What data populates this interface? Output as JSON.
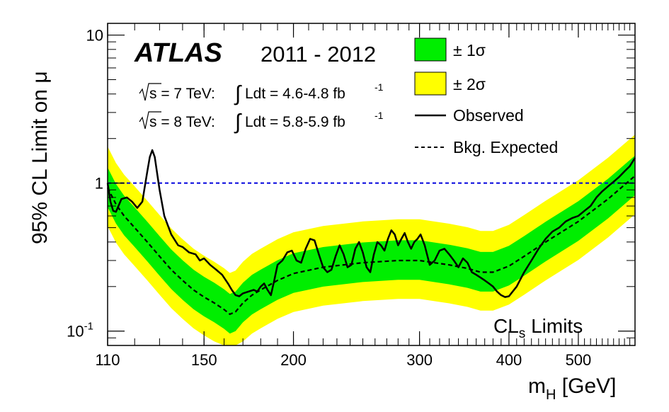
{
  "chart_data": {
    "type": "line",
    "experiment": "ATLAS",
    "years": "2011 - 2012",
    "lumi_lines": [
      {
        "sqrt": "s",
        "energy": " = 7 TeV: ",
        "int": "∫",
        "ldt": "Ldt = 4.6-4.8 fb",
        "sup": "-1"
      },
      {
        "sqrt": "s",
        "energy": " = 8 TeV: ",
        "int": "∫",
        "ldt": "Ldt = 5.8-5.9 fb",
        "sup": "-1"
      }
    ],
    "method": {
      "main": "CL",
      "sub": "s",
      "rest": " Limits"
    },
    "xlabel": {
      "main": "m",
      "sub": "H",
      "rest": " [GeV]"
    },
    "ylabel": "95% CL Limit on μ",
    "x_scale": "log",
    "y_scale": "log",
    "xlim": [
      110,
      600
    ],
    "ylim": [
      0.08,
      12
    ],
    "x_ticks": [
      {
        "value": 110,
        "label": "110"
      },
      {
        "value": 150,
        "label": "150"
      },
      {
        "value": 200,
        "label": "200"
      },
      {
        "value": 300,
        "label": "300"
      },
      {
        "value": 400,
        "label": "400"
      },
      {
        "value": 500,
        "label": "500"
      }
    ],
    "y_ticks": [
      {
        "value": 0.1,
        "label_base": "10",
        "label_exp": "-1"
      },
      {
        "value": 1,
        "label_base": "1",
        "label_exp": ""
      },
      {
        "value": 10,
        "label_base": "10",
        "label_exp": ""
      }
    ],
    "reference_line": {
      "y": 1,
      "color": "#0000dd"
    },
    "legend": [
      {
        "key": "band1",
        "label": "± 1σ",
        "color": "#00ee00"
      },
      {
        "key": "band2",
        "label": "± 2σ",
        "color": "#ffff00"
      },
      {
        "key": "observed",
        "label": "Observed"
      },
      {
        "key": "expected",
        "label": "Bkg. Expected"
      }
    ],
    "expected": {
      "x": [
        110,
        113,
        116,
        120,
        125,
        130,
        135,
        140,
        145,
        150,
        155,
        160,
        163,
        166,
        170,
        175,
        180,
        190,
        200,
        220,
        250,
        280,
        300,
        330,
        350,
        365,
        380,
        400,
        420,
        450,
        500,
        550,
        600
      ],
      "y": [
        0.93,
        0.72,
        0.6,
        0.5,
        0.4,
        0.32,
        0.26,
        0.22,
        0.19,
        0.17,
        0.155,
        0.14,
        0.13,
        0.135,
        0.155,
        0.175,
        0.19,
        0.22,
        0.245,
        0.27,
        0.29,
        0.3,
        0.3,
        0.28,
        0.265,
        0.25,
        0.25,
        0.275,
        0.32,
        0.4,
        0.55,
        0.78,
        1.12
      ]
    },
    "band_1sigma_factor": {
      "low": 0.74,
      "high": 1.37
    },
    "band_2sigma_factor": {
      "low": 0.55,
      "high": 1.9
    },
    "observed": {
      "x": [
        110,
        111,
        112,
        113,
        115,
        117,
        119,
        121,
        123,
        124,
        125,
        126,
        127,
        128,
        130,
        132,
        135,
        138,
        140,
        143,
        146,
        148,
        150,
        153,
        156,
        159,
        162,
        164,
        166,
        168,
        170,
        173,
        176,
        178,
        180,
        182,
        184,
        186,
        188,
        190,
        193,
        196,
        199,
        202,
        205,
        208,
        211,
        214,
        217,
        220,
        223,
        226,
        229,
        232,
        235,
        238,
        241,
        244,
        247,
        250,
        253,
        256,
        259,
        262,
        265,
        268,
        271,
        274,
        277,
        280,
        283,
        286,
        289,
        292,
        295,
        298,
        301,
        305,
        310,
        315,
        320,
        325,
        330,
        335,
        340,
        345,
        350,
        355,
        360,
        365,
        370,
        375,
        380,
        385,
        390,
        395,
        400,
        410,
        420,
        430,
        440,
        450,
        460,
        470,
        480,
        490,
        500,
        510,
        520,
        530,
        540,
        550,
        560,
        570,
        580,
        590,
        600
      ],
      "y": [
        1.0,
        0.75,
        0.65,
        0.64,
        0.78,
        0.8,
        0.75,
        0.68,
        0.75,
        0.95,
        1.2,
        1.5,
        1.67,
        1.5,
        0.9,
        0.6,
        0.45,
        0.38,
        0.37,
        0.34,
        0.33,
        0.3,
        0.31,
        0.28,
        0.26,
        0.24,
        0.21,
        0.19,
        0.175,
        0.172,
        0.18,
        0.185,
        0.19,
        0.185,
        0.2,
        0.21,
        0.19,
        0.175,
        0.22,
        0.28,
        0.3,
        0.34,
        0.35,
        0.3,
        0.29,
        0.36,
        0.42,
        0.41,
        0.33,
        0.27,
        0.25,
        0.26,
        0.32,
        0.38,
        0.33,
        0.27,
        0.28,
        0.36,
        0.4,
        0.34,
        0.27,
        0.25,
        0.33,
        0.4,
        0.38,
        0.35,
        0.42,
        0.48,
        0.45,
        0.38,
        0.42,
        0.46,
        0.4,
        0.36,
        0.4,
        0.42,
        0.45,
        0.38,
        0.28,
        0.3,
        0.35,
        0.36,
        0.33,
        0.3,
        0.27,
        0.31,
        0.29,
        0.25,
        0.24,
        0.23,
        0.22,
        0.21,
        0.2,
        0.185,
        0.175,
        0.17,
        0.172,
        0.2,
        0.25,
        0.3,
        0.36,
        0.42,
        0.47,
        0.5,
        0.55,
        0.58,
        0.6,
        0.65,
        0.7,
        0.8,
        0.88,
        0.95,
        1.02,
        1.1,
        1.2,
        1.3,
        1.48
      ]
    },
    "colors": {
      "observed": "#000000",
      "expected": "#000000",
      "band1": "#00ee00",
      "band2": "#ffff00",
      "axis": "#000000"
    }
  }
}
